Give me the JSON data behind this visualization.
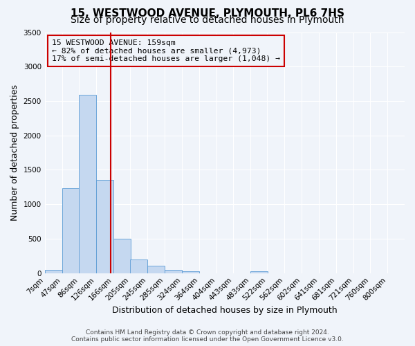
{
  "title_line1": "15, WESTWOOD AVENUE, PLYMOUTH, PL6 7HS",
  "title_line2": "Size of property relative to detached houses in Plymouth",
  "xlabel": "Distribution of detached houses by size in Plymouth",
  "ylabel": "Number of detached properties",
  "bin_labels": [
    "7sqm",
    "47sqm",
    "86sqm",
    "126sqm",
    "166sqm",
    "205sqm",
    "245sqm",
    "285sqm",
    "324sqm",
    "364sqm",
    "404sqm",
    "443sqm",
    "483sqm",
    "522sqm",
    "562sqm",
    "602sqm",
    "641sqm",
    "681sqm",
    "721sqm",
    "760sqm",
    "800sqm"
  ],
  "bin_edges": [
    7,
    47,
    86,
    126,
    166,
    205,
    245,
    285,
    324,
    364,
    404,
    443,
    483,
    522,
    562,
    602,
    641,
    681,
    721,
    760,
    800
  ],
  "bar_heights": [
    50,
    1230,
    2590,
    1350,
    500,
    200,
    110,
    50,
    30,
    0,
    0,
    0,
    30,
    0,
    0,
    0,
    0,
    0,
    0,
    0
  ],
  "bar_color": "#c5d8f0",
  "bar_edge_color": "#5b9bd5",
  "property_size": 159,
  "vline_color": "#cc0000",
  "annotation_line1": "15 WESTWOOD AVENUE: 159sqm",
  "annotation_line2": "← 82% of detached houses are smaller (4,973)",
  "annotation_line3": "17% of semi-detached houses are larger (1,048) →",
  "annotation_box_color": "#cc0000",
  "ylim": [
    0,
    3500
  ],
  "yticks": [
    0,
    500,
    1000,
    1500,
    2000,
    2500,
    3000,
    3500
  ],
  "footer_line1": "Contains HM Land Registry data © Crown copyright and database right 2024.",
  "footer_line2": "Contains public sector information licensed under the Open Government Licence v3.0.",
  "background_color": "#f0f4fa",
  "grid_color": "#ffffff",
  "title_fontsize": 11,
  "subtitle_fontsize": 10,
  "axis_label_fontsize": 9,
  "tick_fontsize": 7.5,
  "footer_fontsize": 6.5
}
